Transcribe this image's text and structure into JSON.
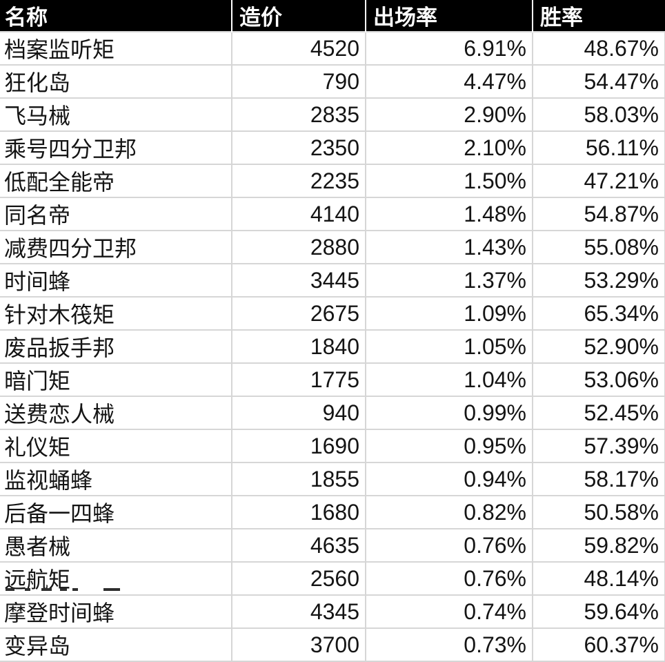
{
  "colors": {
    "header_bg": "#000000",
    "header_text": "#ffffff",
    "body_text": "#141414",
    "grid_border": "#d6d6d6",
    "body_bg": "#ffffff"
  },
  "table": {
    "headers": [
      {
        "key": "name",
        "label": "名称"
      },
      {
        "key": "cost",
        "label": "造价"
      },
      {
        "key": "play_rate",
        "label": "出场率"
      },
      {
        "key": "win_rate",
        "label": "胜率"
      }
    ],
    "rows": [
      {
        "name": "档案监听矩",
        "cost": "4520",
        "play_rate": "6.91%",
        "win_rate": "48.67%"
      },
      {
        "name": "狂化岛",
        "cost": "790",
        "play_rate": "4.47%",
        "win_rate": "54.47%"
      },
      {
        "name": "飞马械",
        "cost": "2835",
        "play_rate": "2.90%",
        "win_rate": "58.03%"
      },
      {
        "name": "乘号四分卫邦",
        "cost": "2350",
        "play_rate": "2.10%",
        "win_rate": "56.11%"
      },
      {
        "name": "低配全能帝",
        "cost": "2235",
        "play_rate": "1.50%",
        "win_rate": "47.21%"
      },
      {
        "name": "同名帝",
        "cost": "4140",
        "play_rate": "1.48%",
        "win_rate": "54.87%"
      },
      {
        "name": "减费四分卫邦",
        "cost": "2880",
        "play_rate": "1.43%",
        "win_rate": "55.08%"
      },
      {
        "name": "时间蜂",
        "cost": "3445",
        "play_rate": "1.37%",
        "win_rate": "53.29%"
      },
      {
        "name": "针对木筏矩",
        "cost": "2675",
        "play_rate": "1.09%",
        "win_rate": "65.34%"
      },
      {
        "name": "废品扳手邦",
        "cost": "1840",
        "play_rate": "1.05%",
        "win_rate": "52.90%"
      },
      {
        "name": "暗门矩",
        "cost": "1775",
        "play_rate": "1.04%",
        "win_rate": "53.06%"
      },
      {
        "name": "送费恋人械",
        "cost": "940",
        "play_rate": "0.99%",
        "win_rate": "52.45%"
      },
      {
        "name": "礼仪矩",
        "cost": "1690",
        "play_rate": "0.95%",
        "win_rate": "57.39%"
      },
      {
        "name": "监视蛹蜂",
        "cost": "1855",
        "play_rate": "0.94%",
        "win_rate": "58.17%"
      },
      {
        "name": "后备一四蜂",
        "cost": "1680",
        "play_rate": "0.82%",
        "win_rate": "50.58%"
      },
      {
        "name": "愚者械",
        "cost": "4635",
        "play_rate": "0.76%",
        "win_rate": "59.82%"
      },
      {
        "name": "远航矩",
        "cost": "2560",
        "play_rate": "0.76%",
        "win_rate": "48.14%"
      },
      {
        "name": "摩登时间蜂",
        "cost": "4345",
        "play_rate": "0.74%",
        "win_rate": "59.64%"
      },
      {
        "name": "变异岛",
        "cost": "3700",
        "play_rate": "0.73%",
        "win_rate": "60.37%"
      }
    ],
    "partial_next_row_visible": true
  }
}
